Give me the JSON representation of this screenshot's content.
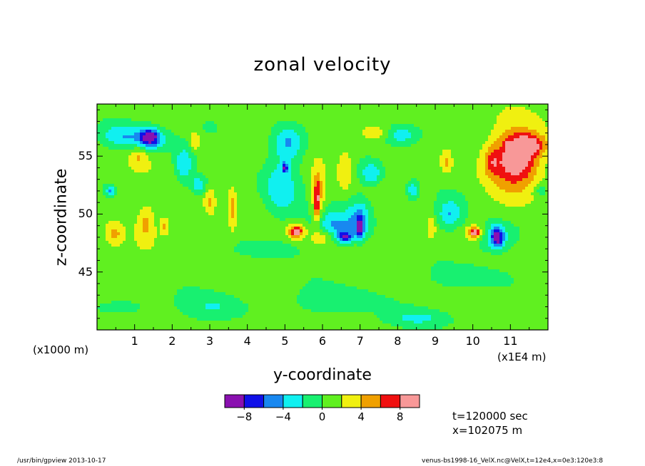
{
  "footer": {
    "left": "/usr/bin/gpview  2013-10-17",
    "right": "venus-bs1998-16_VelX.nc@VelX,t=12e4,x=0e3:120e3:8"
  },
  "info": {
    "time": "t=120000 sec",
    "position": "x=102075 m"
  },
  "chart_data": {
    "type": "heatmap",
    "title": "zonal velocity",
    "xlabel": "y-coordinate",
    "ylabel": "z-coordinate",
    "x_unit_note": "(x1E4 m)",
    "y_unit_note": "(x1000 m)",
    "xlim": [
      0,
      12
    ],
    "ylim": [
      40,
      59.5
    ],
    "x_ticks": [
      1,
      2,
      3,
      4,
      5,
      6,
      7,
      8,
      9,
      10,
      11
    ],
    "y_ticks": [
      45,
      50,
      55
    ],
    "colorbar": {
      "levels": [
        -10,
        -8,
        -6,
        -4,
        -2,
        0,
        2,
        4,
        6,
        8,
        10
      ],
      "tick_labels": [
        "-8",
        "-4",
        "0",
        "4",
        "8"
      ],
      "tick_values": [
        -8,
        -4,
        0,
        4,
        8
      ],
      "colors": [
        "#8a10b0",
        "#1010e8",
        "#1888f0",
        "#10f0f0",
        "#18f070",
        "#60f020",
        "#f0f010",
        "#f0a000",
        "#f01010",
        "#f89898"
      ]
    },
    "background_value": 1,
    "features": [
      {
        "x": 0.5,
        "z": 56.8,
        "rx": 0.45,
        "rz": 0.9,
        "v": -1.5
      },
      {
        "x": 1.3,
        "z": 56.5,
        "rx": 0.7,
        "rz": 1.1,
        "v": -3.0
      },
      {
        "x": 1.4,
        "z": 56.6,
        "rx": 0.25,
        "rz": 0.7,
        "v": -5.0
      },
      {
        "x": 0.35,
        "z": 52.0,
        "rx": 0.12,
        "rz": 0.4,
        "v": -3.0
      },
      {
        "x": 1.1,
        "z": 55.0,
        "rx": 0.25,
        "rz": 1.0,
        "v": 3.0
      },
      {
        "x": 1.3,
        "z": 49.2,
        "rx": 0.2,
        "rz": 1.4,
        "v": 3.0
      },
      {
        "x": 0.45,
        "z": 48.3,
        "rx": 0.22,
        "rz": 0.9,
        "v": 3.0
      },
      {
        "x": 1.8,
        "z": 49.0,
        "rx": 0.12,
        "rz": 0.7,
        "v": 3.0
      },
      {
        "x": 2.3,
        "z": 54.2,
        "rx": 0.25,
        "rz": 1.6,
        "v": -3.0
      },
      {
        "x": 2.7,
        "z": 52.5,
        "rx": 0.2,
        "rz": 0.7,
        "v": -3.0
      },
      {
        "x": 2.6,
        "z": 56.2,
        "rx": 0.12,
        "rz": 0.7,
        "v": 3.0
      },
      {
        "x": 3.0,
        "z": 51.0,
        "rx": 0.15,
        "rz": 1.2,
        "v": 3.0
      },
      {
        "x": 3.6,
        "z": 50.5,
        "rx": 0.12,
        "rz": 2.0,
        "v": 3.0
      },
      {
        "x": 3.0,
        "z": 57.5,
        "rx": 0.2,
        "rz": 0.6,
        "v": -1.5
      },
      {
        "x": 4.9,
        "z": 52.5,
        "rx": 0.5,
        "rz": 3.0,
        "v": -3.0
      },
      {
        "x": 5.1,
        "z": 56.2,
        "rx": 0.4,
        "rz": 1.5,
        "v": -3.0
      },
      {
        "x": 5.0,
        "z": 54.0,
        "rx": 0.08,
        "rz": 0.4,
        "v": -5.0
      },
      {
        "x": 5.3,
        "z": 48.5,
        "rx": 0.3,
        "rz": 0.7,
        "v": 3.0
      },
      {
        "x": 5.3,
        "z": 48.5,
        "rx": 0.15,
        "rz": 0.45,
        "v": 5.0
      },
      {
        "x": 5.9,
        "z": 52.0,
        "rx": 0.2,
        "rz": 2.8,
        "v": 3.0
      },
      {
        "x": 5.85,
        "z": 51.0,
        "rx": 0.08,
        "rz": 1.8,
        "v": 5.0
      },
      {
        "x": 6.3,
        "z": 49.0,
        "rx": 0.55,
        "rz": 1.3,
        "v": -3.0
      },
      {
        "x": 6.0,
        "z": 48.0,
        "rx": 0.3,
        "rz": 0.7,
        "v": 3.0
      },
      {
        "x": 6.6,
        "z": 54.0,
        "rx": 0.2,
        "rz": 1.8,
        "v": 3.0
      },
      {
        "x": 6.6,
        "z": 48.0,
        "rx": 0.2,
        "rz": 0.5,
        "v": -5.0
      },
      {
        "x": 7.0,
        "z": 48.7,
        "rx": 0.1,
        "rz": 0.9,
        "v": -5.0
      },
      {
        "x": 7.0,
        "z": 49.8,
        "rx": 0.35,
        "rz": 1.8,
        "v": -3.0
      },
      {
        "x": 7.3,
        "z": 53.5,
        "rx": 0.3,
        "rz": 1.0,
        "v": -3.0
      },
      {
        "x": 7.4,
        "z": 57.0,
        "rx": 0.35,
        "rz": 0.5,
        "v": 3.0
      },
      {
        "x": 8.1,
        "z": 56.8,
        "rx": 0.5,
        "rz": 1.0,
        "v": -3.0
      },
      {
        "x": 8.4,
        "z": 52.0,
        "rx": 0.15,
        "rz": 0.8,
        "v": -3.0
      },
      {
        "x": 8.9,
        "z": 48.8,
        "rx": 0.12,
        "rz": 0.9,
        "v": 3.0
      },
      {
        "x": 9.3,
        "z": 54.5,
        "rx": 0.15,
        "rz": 1.0,
        "v": 3.0
      },
      {
        "x": 9.4,
        "z": 50.0,
        "rx": 0.35,
        "rz": 1.2,
        "v": -3.0
      },
      {
        "x": 10.05,
        "z": 48.4,
        "rx": 0.15,
        "rz": 0.4,
        "v": 5.0
      },
      {
        "x": 10.05,
        "z": 48.4,
        "rx": 0.28,
        "rz": 0.7,
        "v": 3.0
      },
      {
        "x": 10.6,
        "z": 48.0,
        "rx": 0.55,
        "rz": 1.4,
        "v": -3.0
      },
      {
        "x": 10.65,
        "z": 48.0,
        "rx": 0.15,
        "rz": 0.9,
        "v": -5.0
      },
      {
        "x": 10.5,
        "z": 54.5,
        "rx": 0.2,
        "rz": 1.2,
        "v": 3.0
      },
      {
        "x": 11.0,
        "z": 54.5,
        "rx": 0.7,
        "rz": 3.2,
        "v": 3.0
      },
      {
        "x": 11.2,
        "z": 54.8,
        "rx": 0.55,
        "rz": 1.9,
        "v": 5.0
      },
      {
        "x": 11.5,
        "z": 56.0,
        "rx": 0.45,
        "rz": 0.9,
        "v": 5.0
      },
      {
        "x": 10.95,
        "z": 55.8,
        "rx": 0.05,
        "rz": 0.35,
        "v": 7.0
      },
      {
        "x": 11.8,
        "z": 52.0,
        "rx": 0.2,
        "rz": 0.6,
        "v": -1.5
      },
      {
        "x": 3.2,
        "z": 42.0,
        "rx": 0.9,
        "rz": 1.2,
        "v": -1.5
      },
      {
        "x": 6.5,
        "z": 42.5,
        "rx": 1.2,
        "rz": 1.2,
        "v": -1.5
      },
      {
        "x": 10.0,
        "z": 44.5,
        "rx": 1.0,
        "rz": 1.0,
        "v": -1.5
      },
      {
        "x": 0.7,
        "z": 42.0,
        "rx": 0.7,
        "rz": 0.8,
        "v": -1.5
      },
      {
        "x": 8.5,
        "z": 41.0,
        "rx": 1.0,
        "rz": 0.7,
        "v": -1.5
      },
      {
        "x": 4.5,
        "z": 47.0,
        "rx": 0.8,
        "rz": 0.8,
        "v": -1.5
      },
      {
        "x": 2.0,
        "z": 45.5,
        "rx": 0.6,
        "rz": 0.6,
        "v": 0.5
      },
      {
        "x": 4.0,
        "z": 57.5,
        "rx": 0.7,
        "rz": 1.0,
        "v": 0.5
      }
    ]
  }
}
